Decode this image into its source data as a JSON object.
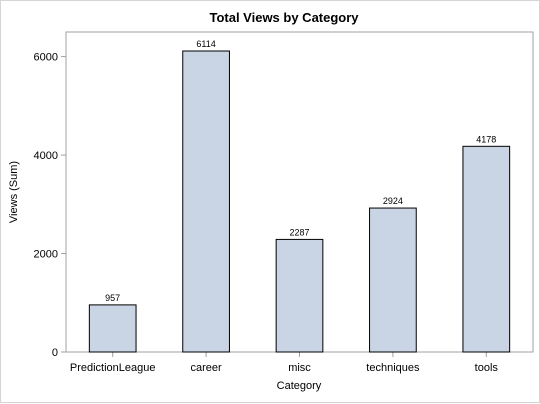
{
  "chart_data": {
    "type": "bar",
    "title": "Total Views by Category",
    "xlabel": "Category",
    "ylabel": "Views (Sum)",
    "categories": [
      "PredictionLeague",
      "career",
      "misc",
      "techniques",
      "tools"
    ],
    "values": [
      957,
      6114,
      2287,
      2924,
      4178
    ],
    "ylim": [
      0,
      6500
    ],
    "yticks": [
      0,
      2000,
      4000,
      6000
    ],
    "grid": false,
    "legend": "none",
    "colors": {
      "bar_fill": "#c9d4e4",
      "bar_stroke": "#000000",
      "axis": "#a0a0a0"
    }
  }
}
